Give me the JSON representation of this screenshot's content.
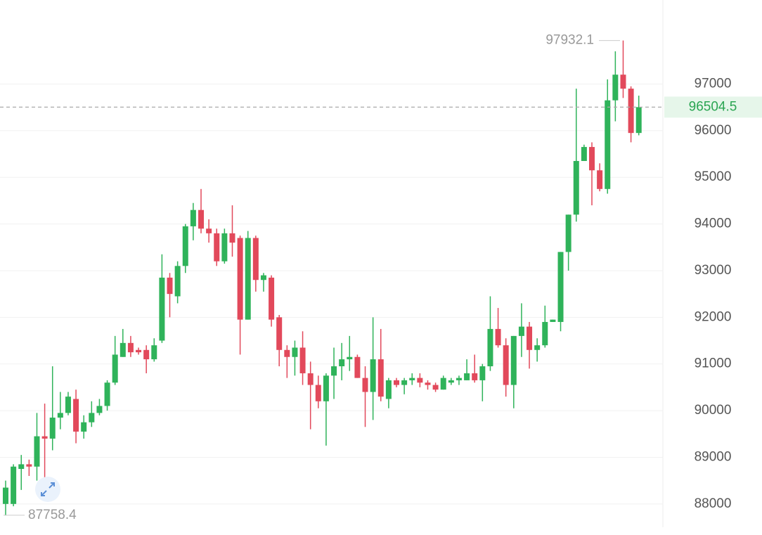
{
  "chart_data": {
    "type": "candlestick",
    "open": [
      88000,
      88000,
      88750,
      88850,
      88800,
      89450,
      89400,
      89850,
      89950,
      90250,
      89550,
      89750,
      89950,
      90100,
      90600,
      91150,
      91450,
      91300,
      91300,
      91100,
      91500,
      92850,
      92450,
      93100,
      93950,
      94300,
      93900,
      93800,
      93200,
      93800,
      93700,
      91950,
      93700,
      92800,
      92850,
      92000,
      91300,
      91150,
      91350,
      90800,
      90550,
      90200,
      90750,
      90950,
      91100,
      91150,
      90700,
      90400,
      91100,
      90250,
      90650,
      90550,
      90650,
      90700,
      90600,
      90550,
      90450,
      90600,
      90650,
      90650,
      90800,
      90650,
      90950,
      91750,
      91400,
      90550,
      91600,
      91800,
      91300,
      91400,
      91900,
      91900,
      93400,
      94200,
      95350,
      95650,
      95150,
      94750,
      96650,
      97200,
      96900,
      95950
    ],
    "high": [
      88500,
      88850,
      89050,
      88950,
      89950,
      90150,
      90950,
      90400,
      90400,
      90450,
      89900,
      90200,
      90250,
      90650,
      91600,
      91750,
      91600,
      91350,
      91400,
      91550,
      93350,
      92950,
      93200,
      94000,
      94450,
      94750,
      94100,
      93900,
      93900,
      94400,
      93750,
      93850,
      93750,
      92950,
      92900,
      92050,
      91400,
      91500,
      91700,
      91050,
      90750,
      90800,
      91350,
      91450,
      91600,
      91200,
      90950,
      92000,
      91750,
      90700,
      90700,
      90700,
      90800,
      90800,
      90650,
      90600,
      90750,
      90700,
      90750,
      91100,
      91200,
      91000,
      92450,
      92200,
      91550,
      91600,
      92300,
      91900,
      91550,
      92250,
      91950,
      93400,
      94200,
      96900,
      95700,
      95750,
      95300,
      97100,
      97700,
      97932.1,
      96950,
      96750
    ],
    "low": [
      87758.4,
      87950,
      88300,
      88600,
      88500,
      88440,
      89150,
      89600,
      89900,
      89300,
      89400,
      89650,
      89900,
      90000,
      90550,
      91150,
      91150,
      91200,
      90800,
      91050,
      91450,
      92000,
      92300,
      92950,
      93650,
      93800,
      93600,
      93100,
      93150,
      93300,
      91200,
      91950,
      92550,
      92550,
      91800,
      90950,
      90700,
      90750,
      90550,
      89600,
      90050,
      89250,
      90250,
      90650,
      90850,
      90700,
      89650,
      89800,
      90200,
      90050,
      90500,
      90350,
      90550,
      90500,
      90450,
      90400,
      90450,
      90550,
      90550,
      90650,
      90600,
      90200,
      90850,
      91350,
      90300,
      90050,
      91150,
      90900,
      91050,
      91350,
      91900,
      91700,
      93000,
      94050,
      95350,
      94400,
      94700,
      94650,
      96200,
      96700,
      95750,
      95900
    ],
    "close": [
      88350,
      88800,
      88850,
      88800,
      89450,
      89400,
      89850,
      89950,
      90300,
      89550,
      89750,
      89950,
      90100,
      90600,
      91200,
      91450,
      91250,
      91250,
      91100,
      91400,
      92850,
      92500,
      93100,
      93950,
      94300,
      93900,
      93800,
      93200,
      93800,
      93600,
      91950,
      93700,
      92800,
      92900,
      91950,
      91300,
      91150,
      91350,
      90800,
      90550,
      90200,
      90750,
      90950,
      91100,
      91150,
      90700,
      90400,
      91100,
      90300,
      90650,
      90550,
      90650,
      90700,
      90600,
      90550,
      90450,
      90700,
      90650,
      90700,
      90800,
      90650,
      90950,
      91750,
      91400,
      90550,
      91600,
      91800,
      91300,
      91400,
      91900,
      91950,
      93400,
      94200,
      95350,
      95650,
      95150,
      94750,
      96650,
      97200,
      96900,
      95950,
      96504.5
    ],
    "up_color": "#2fb35a",
    "down_color": "#e2495b",
    "ylim": [
      87500,
      98800
    ],
    "yticks": [
      88000,
      89000,
      90000,
      91000,
      92000,
      93000,
      94000,
      95000,
      96000,
      97000
    ],
    "grid": true,
    "last_price": 96504.5,
    "max_annotation": 97932.1,
    "min_annotation": 87758.4
  }
}
